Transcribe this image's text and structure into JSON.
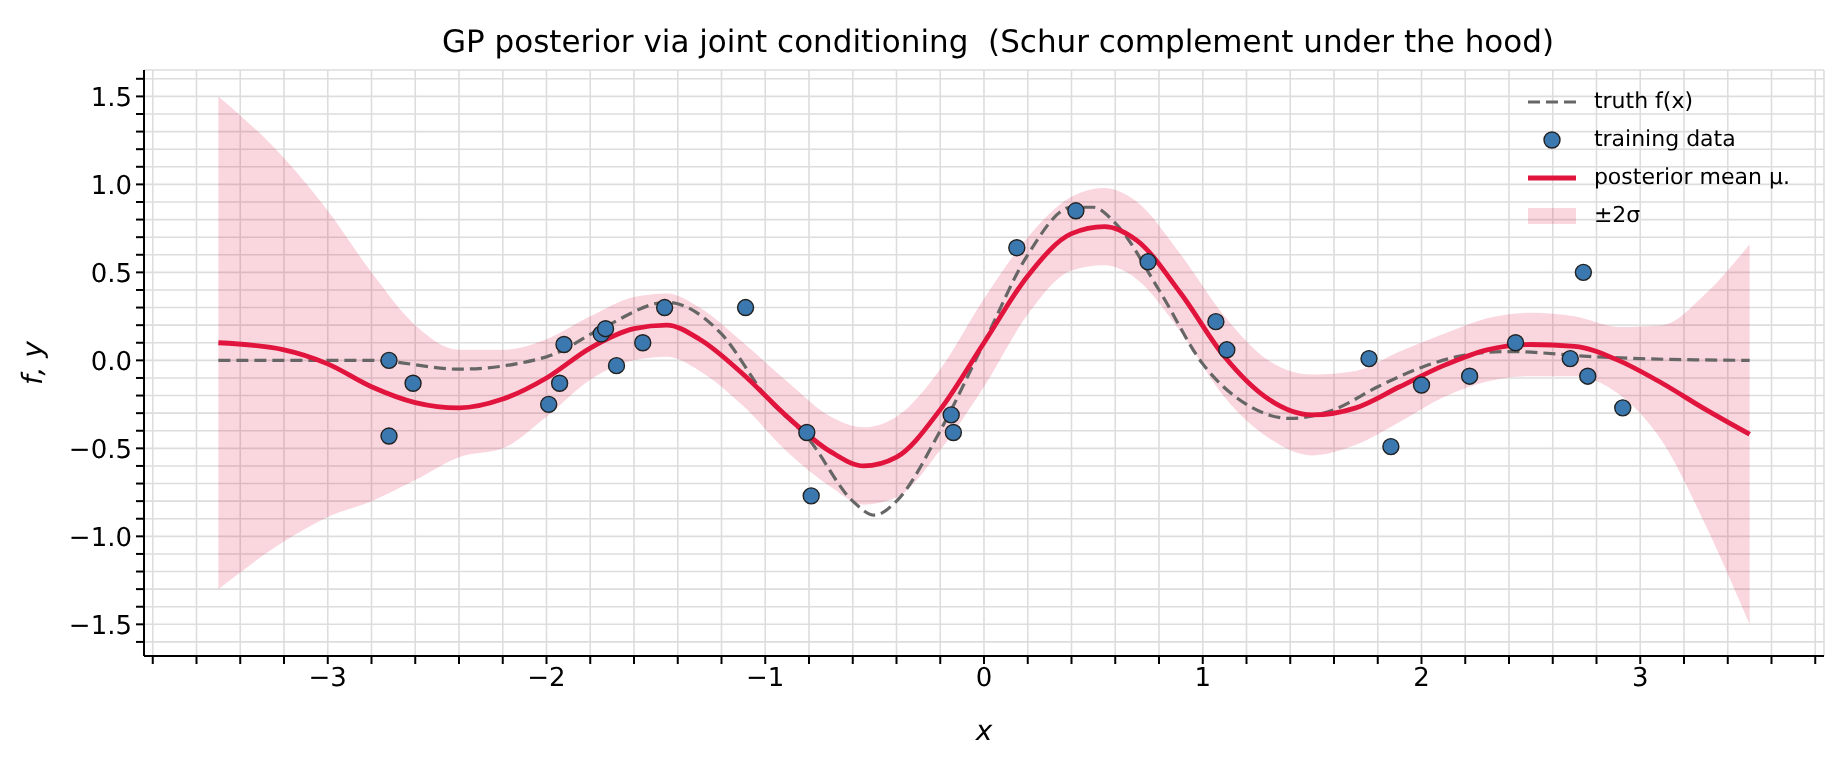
{
  "chart_data": {
    "type": "line",
    "title": "GP posterior via joint conditioning  (Schur complement under the hood)",
    "xlabel": "x",
    "ylabel": "f, y",
    "xlim": [
      -3.84,
      3.84
    ],
    "ylim": [
      -1.68,
      1.65
    ],
    "xticks": [
      {
        "value": -3.8,
        "label": null
      },
      {
        "value": -3.6,
        "label": null
      },
      {
        "value": -3.4,
        "label": null
      },
      {
        "value": -3.2,
        "label": null
      },
      {
        "value": -3,
        "label": "−3"
      },
      {
        "value": -2.8,
        "label": null
      },
      {
        "value": -2.6,
        "label": null
      },
      {
        "value": -2.4,
        "label": null
      },
      {
        "value": -2.2,
        "label": null
      },
      {
        "value": -2,
        "label": "−2"
      },
      {
        "value": -1.8,
        "label": null
      },
      {
        "value": -1.6,
        "label": null
      },
      {
        "value": -1.4,
        "label": null
      },
      {
        "value": -1.2,
        "label": null
      },
      {
        "value": -1,
        "label": "−1"
      },
      {
        "value": -0.8,
        "label": null
      },
      {
        "value": -0.6,
        "label": null
      },
      {
        "value": -0.4,
        "label": null
      },
      {
        "value": -0.2,
        "label": null
      },
      0,
      {
        "value": 0.2,
        "label": null
      },
      {
        "value": 0.4,
        "label": null
      },
      {
        "value": 0.6,
        "label": null
      },
      {
        "value": 0.8,
        "label": null
      },
      1,
      {
        "value": 1.2,
        "label": null
      },
      {
        "value": 1.4,
        "label": null
      },
      {
        "value": 1.6,
        "label": null
      },
      {
        "value": 1.8,
        "label": null
      },
      2,
      {
        "value": 2.2,
        "label": null
      },
      {
        "value": 2.4,
        "label": null
      },
      {
        "value": 2.6,
        "label": null
      },
      {
        "value": 2.8,
        "label": null
      },
      3,
      {
        "value": 3.2,
        "label": null
      },
      {
        "value": 3.4,
        "label": null
      },
      {
        "value": 3.6,
        "label": null
      },
      {
        "value": 3.8,
        "label": null
      }
    ],
    "yticks": [
      {
        "value": -1.6,
        "label": null
      },
      {
        "value": -1.5,
        "label": "−1.5"
      },
      {
        "value": -1.4,
        "label": null
      },
      {
        "value": -1.3,
        "label": null
      },
      {
        "value": -1.2,
        "label": null
      },
      {
        "value": -1.1,
        "label": null
      },
      {
        "value": -1,
        "label": "−1.0"
      },
      {
        "value": -0.9,
        "label": null
      },
      {
        "value": -0.8,
        "label": null
      },
      {
        "value": -0.7,
        "label": null
      },
      {
        "value": -0.6,
        "label": null
      },
      {
        "value": -0.5,
        "label": "−0.5"
      },
      {
        "value": -0.4,
        "label": null
      },
      {
        "value": -0.3,
        "label": null
      },
      {
        "value": -0.2,
        "label": null
      },
      {
        "value": -0.1,
        "label": null
      },
      {
        "value": 0,
        "label": "0.0"
      },
      {
        "value": 0.1,
        "label": null
      },
      {
        "value": 0.2,
        "label": null
      },
      {
        "value": 0.3,
        "label": null
      },
      {
        "value": 0.4,
        "label": null
      },
      {
        "value": 0.5,
        "label": "0.5"
      },
      {
        "value": 0.6,
        "label": null
      },
      {
        "value": 0.7,
        "label": null
      },
      {
        "value": 0.8,
        "label": null
      },
      {
        "value": 0.9,
        "label": null
      },
      {
        "value": 1,
        "label": "1.0"
      },
      {
        "value": 1.1,
        "label": null
      },
      {
        "value": 1.2,
        "label": null
      },
      {
        "value": 1.3,
        "label": null
      },
      {
        "value": 1.4,
        "label": null
      },
      {
        "value": 1.5,
        "label": "1.5"
      },
      {
        "value": 1.6,
        "label": null
      }
    ],
    "grid": true,
    "legend": "top right",
    "annotations": [
      "±2σ"
    ],
    "series": [
      {
        "name": "truth f(x)",
        "type": "line",
        "line_style": "dashed",
        "color": "#666666",
        "x": [
          -3.5,
          -2.8,
          -2.4,
          -2.0,
          -1.75,
          -1.45,
          -1.2,
          -1.0,
          -0.8,
          -0.6,
          -0.5,
          -0.4,
          -0.2,
          0,
          0.2,
          0.4,
          0.5,
          0.6,
          0.8,
          1.0,
          1.2,
          1.4,
          1.6,
          1.8,
          2.0,
          2.2,
          2.4,
          2.8,
          3.0,
          3.5
        ],
        "values": [
          0,
          0,
          -0.05,
          0.02,
          0.18,
          0.33,
          0.15,
          -0.2,
          -0.45,
          -0.8,
          -0.88,
          -0.8,
          -0.4,
          0.1,
          0.6,
          0.87,
          0.87,
          0.78,
          0.4,
          -0.02,
          -0.25,
          -0.33,
          -0.28,
          -0.15,
          -0.04,
          0.03,
          0.05,
          0.02,
          0.01,
          0
        ]
      },
      {
        "name": "training data",
        "type": "scatter",
        "marker": "circle",
        "color": "#3b78b0",
        "x": [
          -2.72,
          -2.72,
          -2.61,
          -1.99,
          -1.94,
          -1.92,
          -1.75,
          -1.73,
          -1.68,
          -1.56,
          -1.46,
          -1.09,
          -0.81,
          -0.79,
          -0.15,
          -0.14,
          0.15,
          0.42,
          0.75,
          1.06,
          1.11,
          1.76,
          1.86,
          2.0,
          2.22,
          2.43,
          2.68,
          2.74,
          2.76,
          2.92
        ],
        "values": [
          0.0,
          -0.43,
          -0.13,
          -0.25,
          -0.13,
          0.09,
          0.15,
          0.18,
          -0.03,
          0.1,
          0.3,
          0.3,
          -0.41,
          -0.77,
          -0.31,
          -0.41,
          0.64,
          0.85,
          0.56,
          0.22,
          0.06,
          0.01,
          -0.49,
          -0.14,
          -0.09,
          0.1,
          0.01,
          0.5,
          -0.09,
          -0.27
        ]
      },
      {
        "name": "posterior mean μ.",
        "type": "line",
        "line_style": "solid",
        "color": "#e0143c",
        "x": [
          -3.5,
          -3.2,
          -3.0,
          -2.8,
          -2.6,
          -2.4,
          -2.2,
          -2.0,
          -1.8,
          -1.6,
          -1.45,
          -1.3,
          -1.1,
          -0.9,
          -0.7,
          -0.55,
          -0.4,
          -0.2,
          0,
          0.2,
          0.4,
          0.55,
          0.7,
          0.9,
          1.1,
          1.3,
          1.5,
          1.7,
          1.9,
          2.1,
          2.3,
          2.5,
          2.7,
          2.9,
          3.1,
          3.3,
          3.5
        ],
        "values": [
          0.1,
          0.06,
          -0.02,
          -0.15,
          -0.24,
          -0.27,
          -0.22,
          -0.1,
          0.07,
          0.18,
          0.2,
          0.12,
          -0.08,
          -0.32,
          -0.52,
          -0.6,
          -0.55,
          -0.28,
          0.1,
          0.48,
          0.72,
          0.76,
          0.68,
          0.38,
          0.02,
          -0.22,
          -0.31,
          -0.27,
          -0.15,
          -0.03,
          0.06,
          0.09,
          0.08,
          0.0,
          -0.13,
          -0.28,
          -0.42
        ],
        "lower": [
          -1.3,
          -1.03,
          -0.89,
          -0.8,
          -0.68,
          -0.55,
          -0.5,
          -0.32,
          -0.11,
          0.0,
          0.02,
          -0.06,
          -0.26,
          -0.52,
          -0.72,
          -0.82,
          -0.78,
          -0.51,
          -0.15,
          0.26,
          0.51,
          0.54,
          0.46,
          0.16,
          -0.21,
          -0.44,
          -0.54,
          -0.48,
          -0.35,
          -0.21,
          -0.12,
          -0.09,
          -0.09,
          -0.19,
          -0.46,
          -0.94,
          -1.5
        ],
        "upper": [
          1.5,
          1.15,
          0.85,
          0.5,
          0.2,
          0.06,
          0.06,
          0.12,
          0.25,
          0.36,
          0.38,
          0.3,
          0.1,
          -0.12,
          -0.32,
          -0.38,
          -0.32,
          -0.05,
          0.35,
          0.7,
          0.93,
          0.98,
          0.9,
          0.6,
          0.25,
          0.0,
          -0.08,
          -0.06,
          0.05,
          0.15,
          0.24,
          0.27,
          0.25,
          0.19,
          0.2,
          0.38,
          0.66
        ]
      }
    ]
  }
}
